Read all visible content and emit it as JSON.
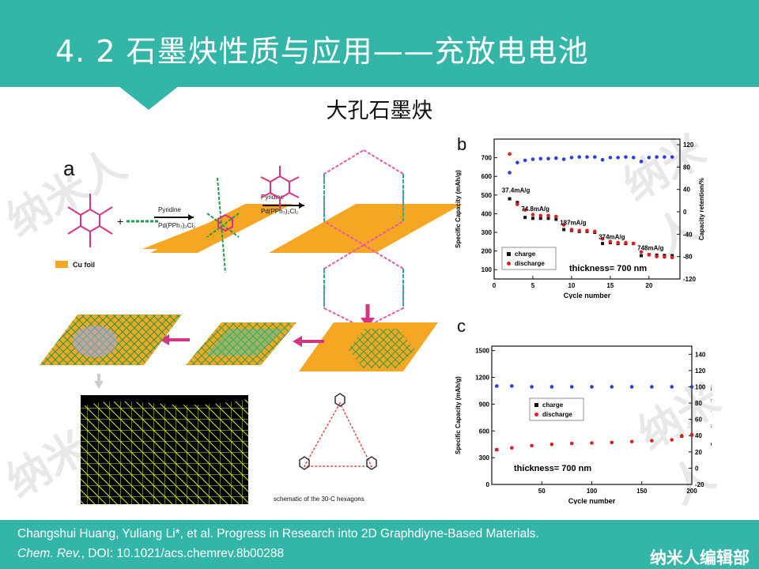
{
  "slide": {
    "title": "4. 2  石墨炔性质与应用——充放电电池",
    "subtitle": "大孔石墨炔",
    "watermark": "纳米人",
    "citation_line1": "Changshui Huang, Yuliang Li*, et al. Progress in Research into 2D Graphdiyne-Based Materials.",
    "citation_journal": "Chem. Rev.",
    "citation_rest": ", DOI: 10.1021/acs.chemrev.8b00288",
    "brand": "纳米人编辑部",
    "accent_color": "#33b5a8"
  },
  "panel_a": {
    "label": "a",
    "reagent1": "Pyridine",
    "reagent2": "Pd(PPh₃)₂Cl₂",
    "legend_label": "Cu foil",
    "schematic_caption": "schematic of the 30-C hexagons"
  },
  "chart_data": [
    {
      "type": "scatter",
      "panel_label": "b",
      "xlabel": "Cycle number",
      "ylabel": "Specific Capacity (mAh/g)",
      "y2label": "Capacity retention/%",
      "xlim": [
        0,
        24
      ],
      "ylim": [
        50,
        800
      ],
      "y2lim": [
        -120,
        130
      ],
      "xticks": [
        0,
        5,
        10,
        15,
        20
      ],
      "yticks": [
        100,
        200,
        300,
        400,
        500,
        600,
        700
      ],
      "y2ticks": [
        -120,
        -80,
        -40,
        0,
        40,
        80,
        120
      ],
      "annotation": "thickness= 700 nm",
      "rate_labels": [
        {
          "text": "37.4mA/g",
          "x": 1.0,
          "y": 515
        },
        {
          "text": "74.8mA/g",
          "x": 3.5,
          "y": 415
        },
        {
          "text": "187mA/g",
          "x": 8.5,
          "y": 340
        },
        {
          "text": "374mA/g",
          "x": 13.5,
          "y": 265
        },
        {
          "text": "748mA/g",
          "x": 18.5,
          "y": 205
        }
      ],
      "legend": [
        "charge",
        "discharge"
      ],
      "series": [
        {
          "name": "charge",
          "axis": "left",
          "color": "#111111",
          "x": [
            2,
            3,
            4,
            5,
            6,
            7,
            8,
            9,
            10,
            11,
            12,
            13,
            14,
            15,
            16,
            17,
            18,
            19,
            20,
            21,
            22,
            23
          ],
          "y": [
            480,
            460,
            380,
            375,
            375,
            375,
            370,
            315,
            310,
            305,
            305,
            300,
            240,
            245,
            240,
            240,
            240,
            175,
            180,
            178,
            176,
            175
          ]
        },
        {
          "name": "discharge",
          "axis": "left",
          "color": "#e02020",
          "x": [
            2,
            3,
            4,
            5,
            6,
            7,
            8,
            9,
            10,
            11,
            12,
            13,
            14,
            15,
            16,
            17,
            18,
            19,
            20,
            21,
            22,
            23
          ],
          "y": [
            720,
            450,
            420,
            395,
            390,
            390,
            385,
            340,
            315,
            310,
            310,
            305,
            265,
            250,
            245,
            245,
            240,
            195,
            180,
            170,
            168,
            165
          ]
        },
        {
          "name": "retention",
          "axis": "right",
          "color": "#2a3fe0",
          "x": [
            2,
            3,
            4,
            5,
            6,
            7,
            8,
            9,
            10,
            11,
            12,
            13,
            14,
            15,
            16,
            17,
            18,
            19,
            20,
            21,
            22,
            23
          ],
          "y": [
            70,
            88,
            92,
            94,
            95,
            95,
            96,
            94,
            97,
            98,
            98,
            98,
            93,
            97,
            97,
            98,
            97,
            90,
            97,
            98,
            98,
            98
          ]
        }
      ]
    },
    {
      "type": "scatter",
      "panel_label": "c",
      "xlabel": "Cycle number",
      "ylabel": "Specific Capacity (mAh/g)",
      "y2label": "Capacity retention/%",
      "xlim": [
        0,
        200
      ],
      "ylim": [
        0,
        1550
      ],
      "y2lim": [
        -20,
        150
      ],
      "xticks": [
        50,
        100,
        150,
        200
      ],
      "yticks": [
        0,
        300,
        600,
        900,
        1200,
        1500
      ],
      "y2ticks": [
        -20,
        0,
        20,
        40,
        60,
        80,
        100,
        120,
        140
      ],
      "annotation": "thickness= 700 nm",
      "legend": [
        "charge",
        "discharge"
      ],
      "series": [
        {
          "name": "charge",
          "axis": "left",
          "color": "#111111",
          "x": [
            5,
            190,
            200
          ],
          "y": [
            390,
            540,
            555
          ]
        },
        {
          "name": "discharge",
          "axis": "left",
          "color": "#e02020",
          "x": [
            5,
            20,
            40,
            60,
            80,
            100,
            120,
            140,
            160,
            180,
            190,
            200
          ],
          "y": [
            390,
            410,
            435,
            450,
            460,
            465,
            470,
            480,
            490,
            500,
            545,
            555
          ]
        },
        {
          "name": "retention",
          "axis": "right",
          "color": "#2a3fe0",
          "x": [
            5,
            20,
            40,
            60,
            80,
            100,
            120,
            140,
            160,
            180,
            200
          ],
          "y": [
            101,
            101,
            100,
            100,
            100,
            100,
            100,
            100,
            100,
            100,
            100
          ]
        }
      ]
    }
  ]
}
